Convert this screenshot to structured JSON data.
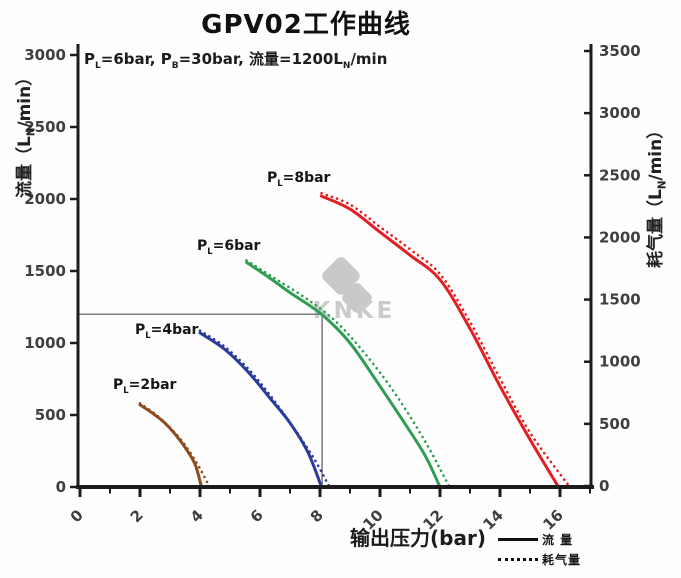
{
  "chart_data": {
    "type": "line",
    "title": "GPV02工作曲线",
    "annotation": "PL=6bar, PB=30bar, 流量=1200LN/min",
    "annotation_segments": [
      {
        "t": "P"
      },
      {
        "s": "L"
      },
      {
        "t": "=6bar, P"
      },
      {
        "s": "B"
      },
      {
        "t": "=30bar, 流量=1200L"
      },
      {
        "s": "N"
      },
      {
        "t": "/min"
      }
    ],
    "x_axis": {
      "label": "输出压力(bar)",
      "min": 0,
      "max": 17,
      "minor_step": 1,
      "ticks": [
        {
          "v": 0,
          "label": "0"
        },
        {
          "v": 2,
          "label": "2"
        },
        {
          "v": 4,
          "label": "4"
        },
        {
          "v": 6,
          "label": "6"
        },
        {
          "v": 8,
          "label": "8"
        },
        {
          "v": 10,
          "label": "10"
        },
        {
          "v": 12,
          "label": "12"
        },
        {
          "v": 14,
          "label": "14"
        },
        {
          "v": 16,
          "label": "16"
        }
      ]
    },
    "y_left": {
      "label": "流量（LN/min）",
      "label_segments": [
        {
          "t": "流量（L"
        },
        {
          "s": "N"
        },
        {
          "t": "/min）"
        }
      ],
      "min": 0,
      "max": 3000,
      "ticks": [
        {
          "v": 0,
          "label": "0"
        },
        {
          "v": 500,
          "label": "500"
        },
        {
          "v": 1000,
          "label": "1000"
        },
        {
          "v": 1500,
          "label": "1500"
        },
        {
          "v": 2000,
          "label": "2000"
        },
        {
          "v": 2500,
          "label": "2500"
        },
        {
          "v": 3000,
          "label": "3000"
        }
      ]
    },
    "y_right": {
      "label": "耗气量（LN/min）",
      "label_segments": [
        {
          "t": "耗气量（L"
        },
        {
          "s": "N"
        },
        {
          "t": "/min）"
        }
      ],
      "min": 0,
      "max": 3500,
      "ticks": [
        {
          "v": 0,
          "label": "0"
        },
        {
          "v": 500,
          "label": "500"
        },
        {
          "v": 1000,
          "label": "1000"
        },
        {
          "v": 1500,
          "label": "1500"
        },
        {
          "v": 2000,
          "label": "2000"
        },
        {
          "v": 2500,
          "label": "2500"
        },
        {
          "v": 3000,
          "label": "3000"
        },
        {
          "v": 3500,
          "label": "3500"
        }
      ]
    },
    "reference_lines": {
      "flow": 1200,
      "pressure": 8.07,
      "color": "#7b7b7b"
    },
    "series": [
      {
        "id": "pl2",
        "name": "PL=2bar",
        "color": "#8f4a20",
        "label_segments": [
          {
            "t": "P"
          },
          {
            "s": "L"
          },
          {
            "t": "=2bar"
          }
        ],
        "flow": [
          [
            2.0,
            570
          ],
          [
            2.4,
            515
          ],
          [
            2.8,
            450
          ],
          [
            3.2,
            360
          ],
          [
            3.6,
            245
          ],
          [
            3.85,
            150
          ],
          [
            4.05,
            0
          ]
        ],
        "air": [
          [
            2.0,
            665
          ],
          [
            2.5,
            580
          ],
          [
            3.0,
            470
          ],
          [
            3.5,
            330
          ],
          [
            4.0,
            140
          ],
          [
            4.3,
            0
          ]
        ]
      },
      {
        "id": "pl4",
        "name": "PL=4bar",
        "color": "#2c3a9b",
        "label_segments": [
          {
            "t": "P"
          },
          {
            "s": "L"
          },
          {
            "t": "=4bar"
          }
        ],
        "flow": [
          [
            4.0,
            1070
          ],
          [
            4.8,
            960
          ],
          [
            5.6,
            800
          ],
          [
            6.4,
            600
          ],
          [
            7.0,
            445
          ],
          [
            7.6,
            240
          ],
          [
            8.05,
            0
          ]
        ],
        "air": [
          [
            4.0,
            1250
          ],
          [
            4.8,
            1125
          ],
          [
            5.6,
            945
          ],
          [
            6.4,
            710
          ],
          [
            7.2,
            440
          ],
          [
            7.8,
            220
          ],
          [
            8.3,
            0
          ]
        ]
      },
      {
        "id": "pl6",
        "name": "PL=6bar",
        "color": "#2f9e52",
        "label_segments": [
          {
            "t": "P"
          },
          {
            "s": "L"
          },
          {
            "t": "=6bar"
          }
        ],
        "flow": [
          [
            5.55,
            1560
          ],
          [
            6.3,
            1455
          ],
          [
            7.0,
            1350
          ],
          [
            8.05,
            1200
          ],
          [
            9.0,
            1000
          ],
          [
            10.0,
            700
          ],
          [
            10.8,
            450
          ],
          [
            11.5,
            220
          ],
          [
            12.0,
            0
          ]
        ],
        "air": [
          [
            5.55,
            1815
          ],
          [
            6.5,
            1670
          ],
          [
            7.5,
            1515
          ],
          [
            8.5,
            1330
          ],
          [
            9.5,
            1065
          ],
          [
            10.5,
            745
          ],
          [
            11.5,
            360
          ],
          [
            12.3,
            0
          ]
        ]
      },
      {
        "id": "pl8",
        "name": "PL=8bar",
        "color": "#e41e22",
        "label_segments": [
          {
            "t": "P"
          },
          {
            "s": "L"
          },
          {
            "t": "=8bar"
          }
        ],
        "flow": [
          [
            8.05,
            2020
          ],
          [
            9.0,
            1930
          ],
          [
            10.0,
            1770
          ],
          [
            11.0,
            1610
          ],
          [
            12.0,
            1440
          ],
          [
            13.0,
            1100
          ],
          [
            14.0,
            700
          ],
          [
            15.0,
            330
          ],
          [
            15.95,
            0
          ]
        ],
        "air": [
          [
            8.05,
            2355
          ],
          [
            9.0,
            2265
          ],
          [
            10.0,
            2085
          ],
          [
            11.0,
            1905
          ],
          [
            12.0,
            1705
          ],
          [
            13.0,
            1320
          ],
          [
            14.0,
            865
          ],
          [
            15.0,
            430
          ],
          [
            16.3,
            0
          ]
        ]
      }
    ],
    "legend": [
      {
        "label": "流 量",
        "style": "solid"
      },
      {
        "label": "耗气量",
        "style": "dotted"
      }
    ],
    "watermark": {
      "text": "KNKE",
      "color": "#c9c9c9"
    }
  }
}
